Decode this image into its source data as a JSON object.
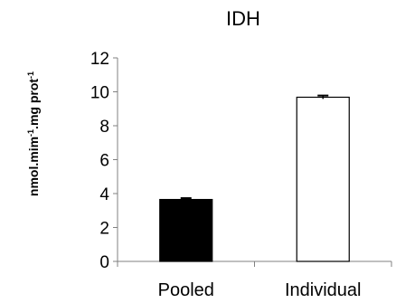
{
  "chart_data": {
    "type": "bar",
    "title": "IDH",
    "ylabel": {
      "parts": [
        {
          "text": "nmol.mim",
          "sup": false
        },
        {
          "text": "-1",
          "sup": true
        },
        {
          "text": ".mg prot",
          "sup": false
        },
        {
          "text": "-1",
          "sup": true
        }
      ]
    },
    "categories": [
      "Pooled",
      "Individual"
    ],
    "series": [
      {
        "values": [
          3.65,
          9.68
        ],
        "errors": [
          0.08,
          0.1
        ],
        "fills": [
          "#000000",
          "#ffffff"
        ],
        "stroke": "#000000"
      }
    ],
    "ylim": [
      0,
      12
    ],
    "yticks": [
      0,
      2,
      4,
      6,
      8,
      10,
      12
    ],
    "ytick_labels": [
      "0",
      "2",
      "4",
      "6",
      "8",
      "10",
      "12"
    ],
    "grid": false,
    "axis_color": "#808080"
  }
}
